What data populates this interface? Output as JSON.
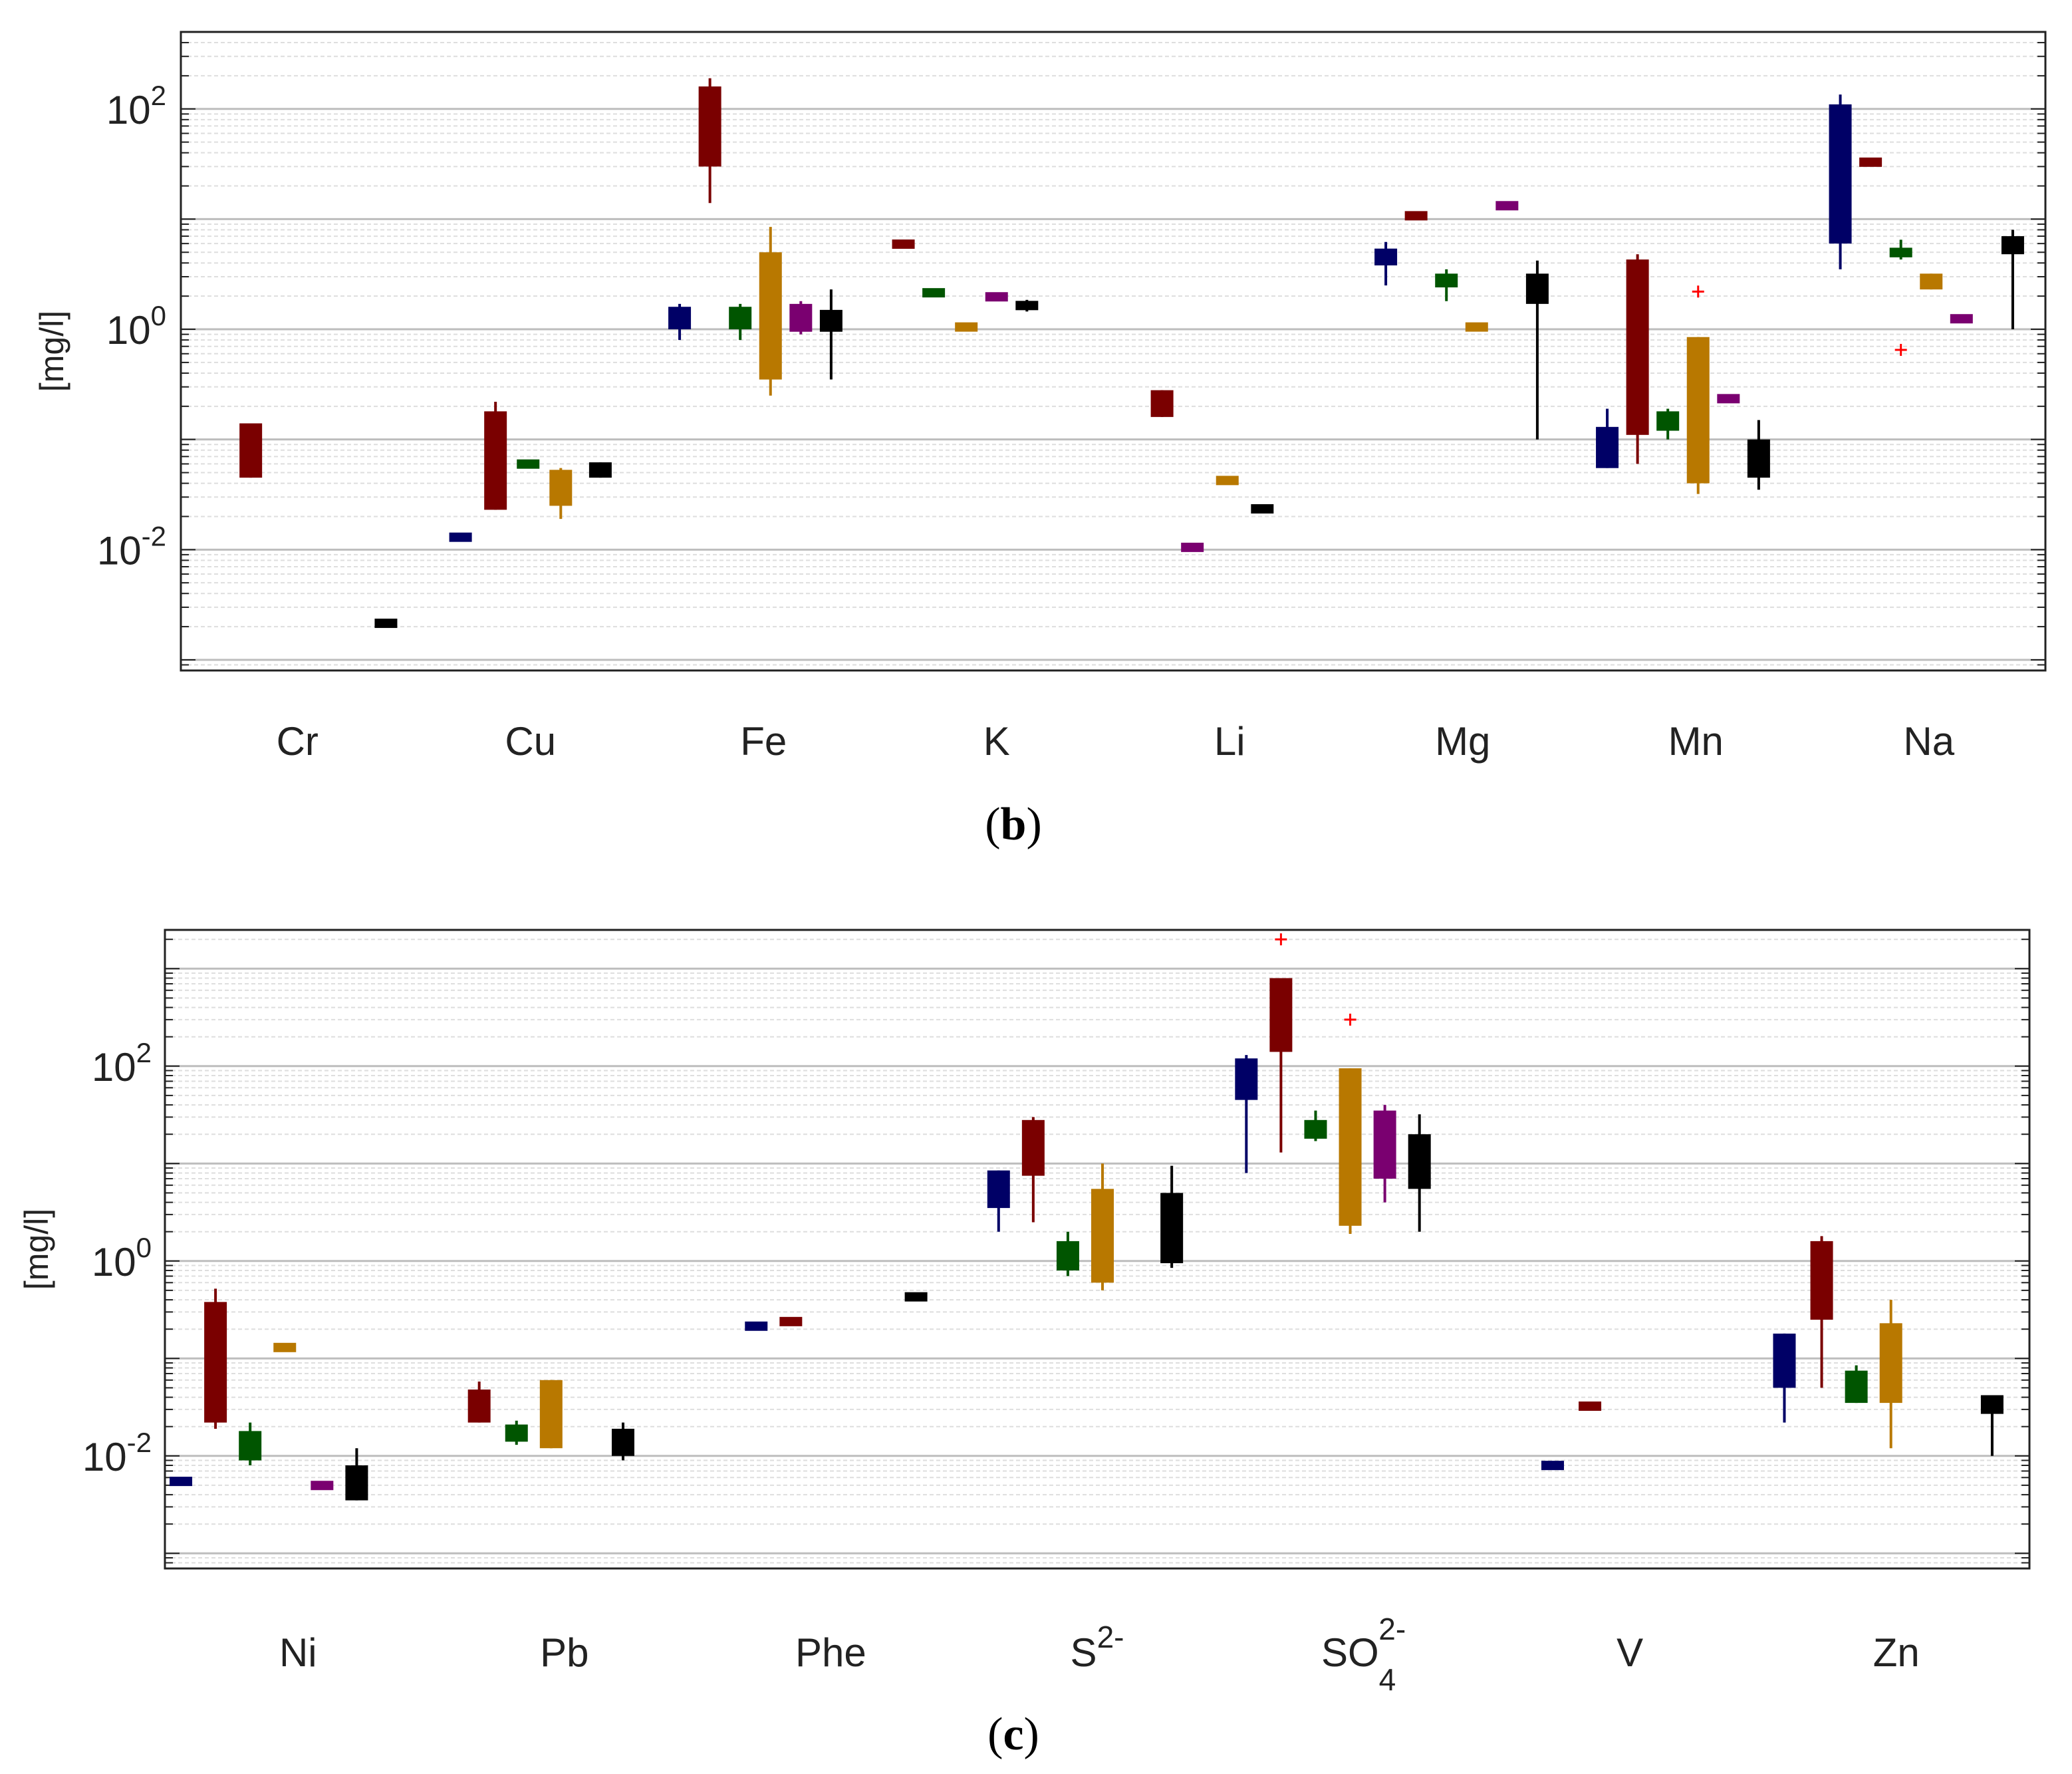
{
  "palette": [
    "#000066",
    "#7a0000",
    "#005500",
    "#b87800",
    "#7a0070",
    "#000000"
  ],
  "outlier_color": "#ff0000",
  "chart_data": [
    {
      "type": "boxplot",
      "panel_tag": "b",
      "ylabel": "[mg/l]",
      "yscale": "log",
      "ylim": [
        0.0008,
        500
      ],
      "yticks": [
        {
          "base": "10",
          "exp": "2",
          "value": 100
        },
        {
          "base": "10",
          "exp": "0",
          "value": 1
        },
        {
          "base": "10",
          "exp": "-2",
          "value": 0.01
        }
      ],
      "grid": true,
      "categories": [
        {
          "label": "Cr",
          "boxes": [
            {
              "x": 0.3,
              "color": 1,
              "q1": 0.045,
              "q3": 0.14,
              "lo": 0.045,
              "hi": 0.14
            },
            {
              "x": 0.88,
              "color": 5,
              "q1": 0.002,
              "q3": 0.0023,
              "lo": 0.002,
              "hi": 0.0023
            }
          ]
        },
        {
          "label": "Cu",
          "boxes": [
            {
              "x": 0.2,
              "color": 0,
              "q1": 0.012,
              "q3": 0.014,
              "lo": 0.012,
              "hi": 0.014
            },
            {
              "x": 0.35,
              "color": 1,
              "q1": 0.023,
              "q3": 0.18,
              "lo": 0.023,
              "hi": 0.22
            },
            {
              "x": 0.49,
              "color": 2,
              "q1": 0.055,
              "q3": 0.065,
              "lo": 0.055,
              "hi": 0.065
            },
            {
              "x": 0.63,
              "color": 3,
              "q1": 0.025,
              "q3": 0.053,
              "lo": 0.019,
              "hi": 0.055
            },
            {
              "x": 0.8,
              "color": 5,
              "q1": 0.045,
              "q3": 0.062,
              "lo": 0.045,
              "hi": 0.062
            }
          ]
        },
        {
          "label": "Fe",
          "boxes": [
            {
              "x": 0.14,
              "color": 0,
              "q1": 1.0,
              "q3": 1.6,
              "lo": 0.8,
              "hi": 1.7
            },
            {
              "x": 0.27,
              "color": 1,
              "q1": 30,
              "q3": 160,
              "lo": 14,
              "hi": 190
            },
            {
              "x": 0.4,
              "color": 2,
              "q1": 1.0,
              "q3": 1.6,
              "lo": 0.8,
              "hi": 1.7
            },
            {
              "x": 0.53,
              "color": 3,
              "q1": 0.35,
              "q3": 5.0,
              "lo": 0.25,
              "hi": 8.5
            },
            {
              "x": 0.66,
              "color": 4,
              "q1": 0.95,
              "q3": 1.7,
              "lo": 0.9,
              "hi": 1.8
            },
            {
              "x": 0.79,
              "color": 5,
              "q1": 0.95,
              "q3": 1.5,
              "lo": 0.35,
              "hi": 2.3
            }
          ]
        },
        {
          "label": "K",
          "boxes": [
            {
              "x": 0.1,
              "color": 1,
              "q1": 5.4,
              "q3": 6.5,
              "lo": 5.4,
              "hi": 6.5
            },
            {
              "x": 0.23,
              "color": 2,
              "q1": 2.0,
              "q3": 2.3,
              "lo": 2.0,
              "hi": 2.3
            },
            {
              "x": 0.37,
              "color": 3,
              "q1": 1.0,
              "q3": 1.1,
              "lo": 1.0,
              "hi": 1.1
            },
            {
              "x": 0.5,
              "color": 4,
              "q1": 1.85,
              "q3": 2.1,
              "lo": 1.85,
              "hi": 2.1
            },
            {
              "x": 0.63,
              "color": 5,
              "q1": 1.5,
              "q3": 1.8,
              "lo": 1.45,
              "hi": 1.85
            }
          ]
        },
        {
          "label": "Li",
          "boxes": [
            {
              "x": 0.21,
              "color": 1,
              "q1": 0.16,
              "q3": 0.28,
              "lo": 0.16,
              "hi": 0.28
            },
            {
              "x": 0.34,
              "color": 4,
              "q1": 0.01,
              "q3": 0.011,
              "lo": 0.01,
              "hi": 0.011
            },
            {
              "x": 0.49,
              "color": 3,
              "q1": 0.04,
              "q3": 0.045,
              "lo": 0.04,
              "hi": 0.045
            },
            {
              "x": 0.64,
              "color": 5,
              "q1": 0.022,
              "q3": 0.025,
              "lo": 0.022,
              "hi": 0.025
            }
          ]
        },
        {
          "label": "Mg",
          "boxes": [
            {
              "x": 0.17,
              "color": 0,
              "q1": 3.8,
              "q3": 5.4,
              "lo": 2.5,
              "hi": 6.2
            },
            {
              "x": 0.3,
              "color": 1,
              "q1": 10,
              "q3": 11.5,
              "lo": 10,
              "hi": 11.5
            },
            {
              "x": 0.43,
              "color": 2,
              "q1": 2.4,
              "q3": 3.2,
              "lo": 1.8,
              "hi": 3.5
            },
            {
              "x": 0.56,
              "color": 3,
              "q1": 1.0,
              "q3": 1.1,
              "lo": 1.0,
              "hi": 1.1
            },
            {
              "x": 0.69,
              "color": 4,
              "q1": 12.5,
              "q3": 14,
              "lo": 12.5,
              "hi": 14
            },
            {
              "x": 0.82,
              "color": 5,
              "q1": 1.7,
              "q3": 3.2,
              "lo": 0.1,
              "hi": 4.2
            }
          ]
        },
        {
          "label": "Mn",
          "boxes": [
            {
              "x": 0.12,
              "color": 0,
              "q1": 0.055,
              "q3": 0.13,
              "lo": 0.055,
              "hi": 0.19
            },
            {
              "x": 0.25,
              "color": 1,
              "q1": 0.11,
              "q3": 4.3,
              "lo": 0.06,
              "hi": 4.8
            },
            {
              "x": 0.38,
              "color": 2,
              "q1": 0.12,
              "q3": 0.18,
              "lo": 0.1,
              "hi": 0.19
            },
            {
              "x": 0.51,
              "color": 3,
              "q1": 0.04,
              "q3": 0.85,
              "lo": 0.032,
              "hi": 0.85,
              "outliers": [
                2.2
              ]
            },
            {
              "x": 0.64,
              "color": 4,
              "q1": 0.22,
              "q3": 0.25,
              "lo": 0.22,
              "hi": 0.25
            },
            {
              "x": 0.77,
              "color": 5,
              "q1": 0.045,
              "q3": 0.1,
              "lo": 0.035,
              "hi": 0.15
            }
          ]
        },
        {
          "label": "Na",
          "boxes": [
            {
              "x": 0.12,
              "color": 0,
              "q1": 6.0,
              "q3": 110,
              "lo": 3.5,
              "hi": 135
            },
            {
              "x": 0.25,
              "color": 1,
              "q1": 30,
              "q3": 36,
              "lo": 30,
              "hi": 36
            },
            {
              "x": 0.38,
              "color": 2,
              "q1": 4.5,
              "q3": 5.5,
              "lo": 4.3,
              "hi": 6.5,
              "outliers": [
                0.65
              ]
            },
            {
              "x": 0.51,
              "color": 3,
              "q1": 2.3,
              "q3": 3.2,
              "lo": 2.3,
              "hi": 3.2
            },
            {
              "x": 0.64,
              "color": 4,
              "q1": 1.15,
              "q3": 1.35,
              "lo": 1.15,
              "hi": 1.35
            },
            {
              "x": 0.86,
              "color": 5,
              "q1": 4.8,
              "q3": 7.0,
              "lo": 1.0,
              "hi": 8.0
            }
          ]
        }
      ]
    },
    {
      "type": "boxplot",
      "panel_tag": "c",
      "ylabel": "[mg/l]",
      "yscale": "log",
      "ylim": [
        0.0007,
        2500
      ],
      "yticks": [
        {
          "base": "10",
          "exp": "2",
          "value": 100
        },
        {
          "base": "10",
          "exp": "0",
          "value": 1
        },
        {
          "base": "10",
          "exp": "-2",
          "value": 0.01
        }
      ],
      "grid": true,
      "categories": [
        {
          "label": "Ni",
          "boxes": [
            {
              "x": 0.06,
              "color": 0,
              "q1": 0.005,
              "q3": 0.006,
              "lo": 0.005,
              "hi": 0.006
            },
            {
              "x": 0.19,
              "color": 1,
              "q1": 0.022,
              "q3": 0.38,
              "lo": 0.019,
              "hi": 0.52
            },
            {
              "x": 0.32,
              "color": 2,
              "q1": 0.009,
              "q3": 0.018,
              "lo": 0.008,
              "hi": 0.022
            },
            {
              "x": 0.45,
              "color": 3,
              "q1": 0.12,
              "q3": 0.14,
              "lo": 0.12,
              "hi": 0.14
            },
            {
              "x": 0.59,
              "color": 4,
              "q1": 0.0045,
              "q3": 0.0055,
              "lo": 0.0045,
              "hi": 0.0055
            },
            {
              "x": 0.72,
              "color": 5,
              "q1": 0.0035,
              "q3": 0.008,
              "lo": 0.0035,
              "hi": 0.012
            }
          ]
        },
        {
          "label": "Pb",
          "boxes": [
            {
              "x": 0.18,
              "color": 1,
              "q1": 0.022,
              "q3": 0.048,
              "lo": 0.022,
              "hi": 0.058
            },
            {
              "x": 0.32,
              "color": 2,
              "q1": 0.014,
              "q3": 0.021,
              "lo": 0.013,
              "hi": 0.023
            },
            {
              "x": 0.45,
              "color": 3,
              "q1": 0.012,
              "q3": 0.06,
              "lo": 0.012,
              "hi": 0.06
            },
            {
              "x": 0.72,
              "color": 5,
              "q1": 0.01,
              "q3": 0.019,
              "lo": 0.009,
              "hi": 0.022
            }
          ]
        },
        {
          "label": "Phe",
          "boxes": [
            {
              "x": 0.22,
              "color": 0,
              "q1": 0.2,
              "q3": 0.23,
              "lo": 0.2,
              "hi": 0.23
            },
            {
              "x": 0.35,
              "color": 1,
              "q1": 0.22,
              "q3": 0.26,
              "lo": 0.22,
              "hi": 0.26
            },
            {
              "x": 0.82,
              "color": 5,
              "q1": 0.4,
              "q3": 0.46,
              "lo": 0.4,
              "hi": 0.46
            }
          ]
        },
        {
          "label": "S2-",
          "sup": "2-",
          "base": "S",
          "boxes": [
            {
              "x": 0.13,
              "color": 0,
              "q1": 3.5,
              "q3": 8.5,
              "lo": 2.0,
              "hi": 8.5
            },
            {
              "x": 0.26,
              "color": 1,
              "q1": 7.5,
              "q3": 28,
              "lo": 2.5,
              "hi": 30
            },
            {
              "x": 0.39,
              "color": 2,
              "q1": 0.8,
              "q3": 1.6,
              "lo": 0.7,
              "hi": 2.0
            },
            {
              "x": 0.52,
              "color": 3,
              "q1": 0.6,
              "q3": 5.5,
              "lo": 0.5,
              "hi": 10
            },
            {
              "x": 0.78,
              "color": 5,
              "q1": 0.95,
              "q3": 5.0,
              "lo": 0.85,
              "hi": 9.5
            }
          ]
        },
        {
          "label": "SO42-",
          "base": "SO",
          "sub": "4",
          "sup": "2-",
          "boxes": [
            {
              "x": 0.06,
              "color": 0,
              "q1": 45,
              "q3": 120,
              "lo": 8,
              "hi": 130
            },
            {
              "x": 0.19,
              "color": 1,
              "q1": 140,
              "q3": 800,
              "lo": 13,
              "hi": 800,
              "outliers": [
                2000
              ]
            },
            {
              "x": 0.32,
              "color": 2,
              "q1": 18,
              "q3": 28,
              "lo": 17,
              "hi": 35
            },
            {
              "x": 0.45,
              "color": 3,
              "q1": 2.3,
              "q3": 95,
              "lo": 1.9,
              "hi": 95,
              "outliers": [
                300
              ]
            },
            {
              "x": 0.58,
              "color": 4,
              "q1": 7,
              "q3": 35,
              "lo": 4,
              "hi": 40
            },
            {
              "x": 0.71,
              "color": 5,
              "q1": 5.5,
              "q3": 20,
              "lo": 2.0,
              "hi": 32
            }
          ]
        },
        {
          "label": "V",
          "boxes": [
            {
              "x": 0.21,
              "color": 0,
              "q1": 0.0075,
              "q3": 0.0085,
              "lo": 0.0075,
              "hi": 0.0085
            },
            {
              "x": 0.35,
              "color": 1,
              "q1": 0.03,
              "q3": 0.035,
              "lo": 0.03,
              "hi": 0.035
            }
          ]
        },
        {
          "label": "Zn",
          "boxes": [
            {
              "x": 0.08,
              "color": 0,
              "q1": 0.05,
              "q3": 0.18,
              "lo": 0.022,
              "hi": 0.18
            },
            {
              "x": 0.22,
              "color": 1,
              "q1": 0.25,
              "q3": 1.6,
              "lo": 0.05,
              "hi": 1.8
            },
            {
              "x": 0.35,
              "color": 2,
              "q1": 0.035,
              "q3": 0.075,
              "lo": 0.035,
              "hi": 0.085
            },
            {
              "x": 0.48,
              "color": 3,
              "q1": 0.035,
              "q3": 0.23,
              "lo": 0.012,
              "hi": 0.4
            },
            {
              "x": 0.86,
              "color": 5,
              "q1": 0.027,
              "q3": 0.042,
              "lo": 0.01,
              "hi": 0.042
            }
          ]
        }
      ]
    }
  ]
}
